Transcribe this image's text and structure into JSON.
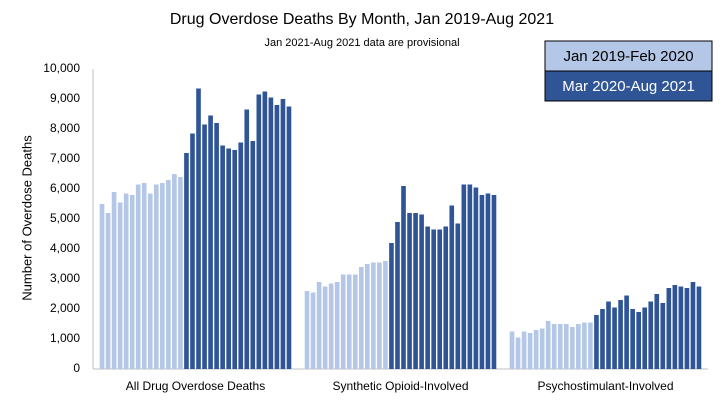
{
  "chart_data": {
    "type": "bar",
    "title": "Drug Overdose Deaths By Month, Jan 2019-Aug 2021",
    "subtitle": "Jan 2021-Aug 2021 data are provisional",
    "y_label": "Number of Overdose Deaths",
    "categories": [
      "All Drug Overdose Deaths",
      "Synthetic Opioid-Involved",
      "Psychostimulant-Involved"
    ],
    "series": [
      {
        "name": "Jan 2019-Feb 2020",
        "color": "#b4c7e7",
        "values": [
          [
            5500,
            5200,
            5900,
            5550,
            5850,
            5800,
            6150,
            6200,
            5850,
            6150,
            6200,
            6300,
            6500,
            6400
          ],
          [
            2600,
            2550,
            2900,
            2750,
            2850,
            2900,
            3150,
            3150,
            3150,
            3400,
            3500,
            3550,
            3550,
            3600
          ],
          [
            1250,
            1050,
            1250,
            1200,
            1300,
            1350,
            1600,
            1500,
            1500,
            1500,
            1400,
            1500,
            1550,
            1550
          ]
        ]
      },
      {
        "name": "Mar 2020-Aug 2021",
        "color": "#2f5597",
        "values": [
          [
            7200,
            7850,
            9350,
            8150,
            8450,
            8200,
            7450,
            7350,
            7300,
            7550,
            8650,
            7600,
            9150,
            9250,
            9050,
            8800,
            9000,
            8750
          ],
          [
            4200,
            4900,
            6100,
            5200,
            5200,
            5150,
            4750,
            4650,
            4650,
            4750,
            5450,
            4850,
            6150,
            6150,
            6050,
            5800,
            5850,
            5800
          ],
          [
            1800,
            2000,
            2250,
            2050,
            2300,
            2450,
            2000,
            1900,
            2050,
            2250,
            2500,
            2200,
            2700,
            2800,
            2750,
            2700,
            2900,
            2750
          ]
        ]
      }
    ],
    "ylim": [
      0,
      10000
    ],
    "yticks": [
      0,
      {
        "value": 1000,
        "label": "1,000"
      },
      {
        "value": 2000,
        "label": "2,000"
      },
      {
        "value": 3000,
        "label": "3,000"
      },
      {
        "value": 4000,
        "label": "4,000"
      },
      {
        "value": 5000,
        "label": "5,000"
      },
      {
        "value": 6000,
        "label": "6,000"
      },
      {
        "value": 7000,
        "label": "7,000"
      },
      {
        "value": 8000,
        "label": "8,000"
      },
      {
        "value": 9000,
        "label": "9,000"
      },
      {
        "value": 10000,
        "label": "10,000"
      }
    ],
    "grid": false,
    "legend": "top-right"
  }
}
